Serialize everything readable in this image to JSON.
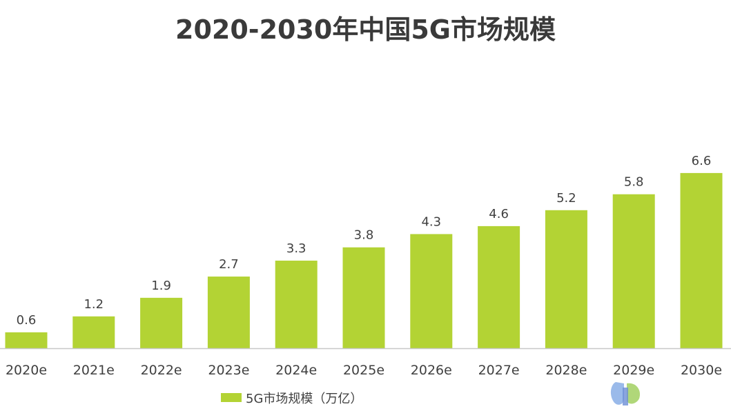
{
  "chart_data": {
    "type": "bar",
    "title": "2020-2030年中国5G市场规模",
    "categories": [
      "2020e",
      "2021e",
      "2022e",
      "2023e",
      "2024e",
      "2025e",
      "2026e",
      "2027e",
      "2028e",
      "2029e",
      "2030e"
    ],
    "series": [
      {
        "name": "5G市场规模（万亿）",
        "values": [
          0.6,
          1.2,
          1.9,
          2.7,
          3.3,
          3.8,
          4.3,
          4.6,
          5.2,
          5.8,
          6.6
        ],
        "color": "#b3d334"
      }
    ],
    "data_labels": [
      "0.6",
      "1.2",
      "1.9",
      "2.7",
      "3.3",
      "3.8",
      "4.3",
      "4.6",
      "5.2",
      "5.8",
      "6.6"
    ],
    "ylim": [
      0,
      7
    ],
    "grid": false,
    "legend_position": "bottom-left"
  },
  "colors": {
    "bar": "#b3d334",
    "axis": "#c8c8c8",
    "text": "#404040",
    "title": "#3a3a3a"
  }
}
